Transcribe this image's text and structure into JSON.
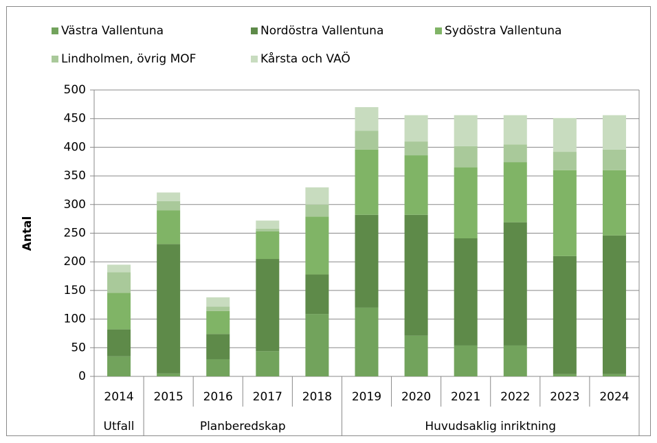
{
  "chart_data": {
    "type": "stacked_bar",
    "y_label": "Antal",
    "categories": [
      "2014",
      "2015",
      "2016",
      "2017",
      "2018",
      "2019",
      "2020",
      "2021",
      "2022",
      "2023",
      "2024"
    ],
    "groups": [
      "Utfall",
      "Planberedskap",
      "Planberedskap",
      "Planberedskap",
      "Planberedskap",
      "Huvudsaklig inriktning",
      "Huvudsaklig inriktning",
      "Huvudsaklig inriktning",
      "Huvudsaklig inriktning",
      "Huvudsaklig inriktning",
      "Huvudsaklig inriktning"
    ],
    "series": [
      {
        "name": "Västra Vallentuna",
        "color": "#72a35c",
        "values": [
          35,
          5,
          30,
          44,
          109,
          120,
          71,
          54,
          54,
          4,
          4
        ]
      },
      {
        "name": "Nordöstra Vallentuna",
        "color": "#5e8a49",
        "values": [
          47,
          226,
          44,
          161,
          69,
          162,
          211,
          187,
          215,
          206,
          242
        ]
      },
      {
        "name": "Sydöstra Vallentuna",
        "color": "#80b466",
        "values": [
          64,
          59,
          40,
          48,
          101,
          114,
          104,
          124,
          105,
          150,
          114
        ]
      },
      {
        "name": "Lindholmen, övrig MOF",
        "color": "#a9c99a",
        "values": [
          36,
          16,
          8,
          5,
          21,
          33,
          24,
          37,
          31,
          32,
          36
        ]
      },
      {
        "name": "Kårsta och VAÖ",
        "color": "#c8dcbf",
        "values": [
          13,
          15,
          16,
          14,
          30,
          41,
          46,
          54,
          51,
          59,
          60
        ]
      }
    ],
    "ylim": [
      0,
      500
    ],
    "yticks": [
      0,
      50,
      100,
      150,
      200,
      250,
      300,
      350,
      400,
      450,
      500
    ],
    "grid": true
  }
}
